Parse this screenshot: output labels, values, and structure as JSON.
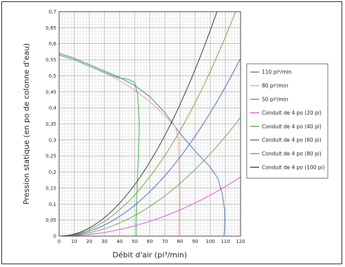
{
  "chart_data": {
    "type": "line",
    "xlabel": "Débit d'air (pi³/min)",
    "ylabel": "Pression statique (en po de colonne d'eau)",
    "xlim": [
      0,
      120
    ],
    "ylim": [
      0,
      0.7
    ],
    "x_ticks": [
      0,
      10,
      20,
      30,
      40,
      50,
      60,
      70,
      80,
      90,
      100,
      110,
      120
    ],
    "y_ticks": [
      0,
      0.05,
      0.1,
      0.15,
      0.2,
      0.25,
      0.3,
      0.35,
      0.4,
      0.45,
      0.5,
      0.55,
      0.6,
      0.65,
      0.7
    ],
    "x_tick_labels": [
      "0",
      "10",
      "20",
      "30",
      "40",
      "50",
      "60",
      "70",
      "80",
      "90",
      "100",
      "110",
      "120"
    ],
    "y_tick_labels": [
      "0",
      "0,05",
      "0,1",
      "0,15",
      "0,2",
      "0,25",
      "0,3",
      "0,35",
      "0,4",
      "0,45",
      "0,5",
      "0,55",
      "0,6",
      "0,65",
      "0,7"
    ],
    "grid": true,
    "legend_position": "right",
    "series": [
      {
        "name": "110 pi³/min",
        "color": "#4a78c2",
        "points": [
          [
            0,
            0.57
          ],
          [
            10,
            0.555
          ],
          [
            20,
            0.535
          ],
          [
            30,
            0.515
          ],
          [
            40,
            0.495
          ],
          [
            50,
            0.47
          ],
          [
            60,
            0.435
          ],
          [
            70,
            0.385
          ],
          [
            80,
            0.32
          ],
          [
            90,
            0.265
          ],
          [
            100,
            0.215
          ],
          [
            105,
            0.18
          ],
          [
            108,
            0.13
          ],
          [
            109.5,
            0.08
          ],
          [
            109.5,
            0.03
          ],
          [
            109,
            0.0
          ]
        ]
      },
      {
        "name": "80 pi³/min",
        "color": "#f2a08a",
        "points": [
          [
            0,
            0.565
          ],
          [
            10,
            0.55
          ],
          [
            20,
            0.53
          ],
          [
            30,
            0.51
          ],
          [
            40,
            0.485
          ],
          [
            50,
            0.455
          ],
          [
            60,
            0.42
          ],
          [
            70,
            0.375
          ],
          [
            77,
            0.34
          ],
          [
            79,
            0.3
          ],
          [
            79.5,
            0.2
          ],
          [
            79.5,
            0.1
          ],
          [
            79.3,
            0.0
          ]
        ]
      },
      {
        "name": "50 pi³/min",
        "color": "#3cb34a",
        "points": [
          [
            0,
            0.565
          ],
          [
            10,
            0.55
          ],
          [
            20,
            0.53
          ],
          [
            30,
            0.51
          ],
          [
            38,
            0.495
          ],
          [
            45,
            0.49
          ],
          [
            50,
            0.48
          ],
          [
            52,
            0.44
          ],
          [
            53,
            0.35
          ],
          [
            52.5,
            0.25
          ],
          [
            51.5,
            0.15
          ],
          [
            51,
            0.05
          ],
          [
            51,
            0.0
          ]
        ]
      },
      {
        "name": "Conduit de 4 po (20 pi)",
        "color": "#e44cd8",
        "k": 1.28e-05
      },
      {
        "name": "Conduit de 4 po (40 pi)",
        "color": "#6aa84f",
        "k": 2.57e-05
      },
      {
        "name": "Conduit de 4 po (60 pi)",
        "color": "#3d6cc4",
        "k": 3.85e-05
      },
      {
        "name": "Conduit de 4 po (80 pi)",
        "color": "#73a43a",
        "k": 5.14e-05
      },
      {
        "name": "Conduit de 4 po (100 pi)",
        "color": "#333333",
        "k": 6.42e-05
      }
    ]
  }
}
